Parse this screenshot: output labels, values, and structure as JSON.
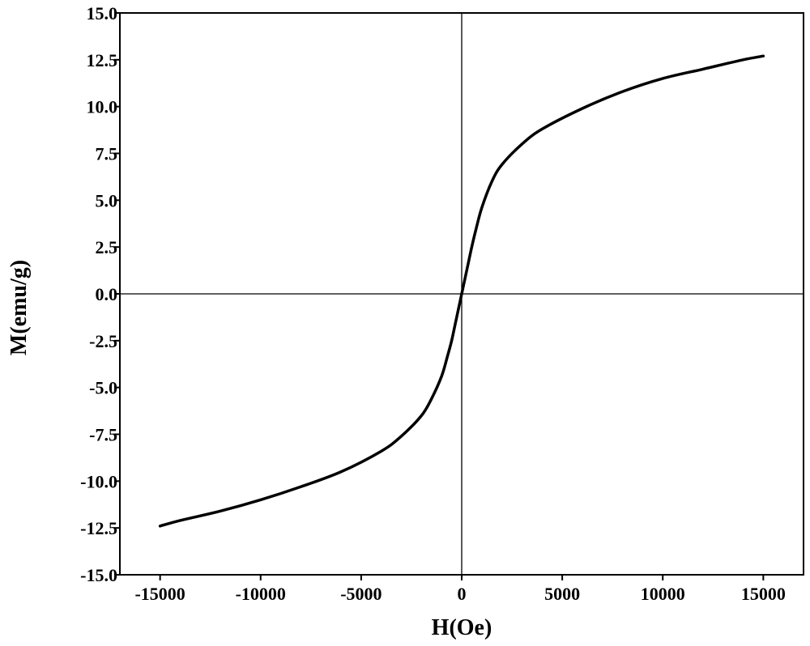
{
  "chart_data": {
    "type": "line",
    "title": "",
    "xlabel": "H(Oe)",
    "ylabel": "M(emu/g)",
    "xlim": [
      -17000,
      17000
    ],
    "ylim": [
      -15.0,
      15.0
    ],
    "xticks": [
      -15000,
      -10000,
      -5000,
      0,
      5000,
      10000,
      15000
    ],
    "xtick_labels": [
      "-15000",
      "-10000",
      "-5000",
      "0",
      "5000",
      "10000",
      "15000"
    ],
    "yticks": [
      15.0,
      12.5,
      10.0,
      7.5,
      5.0,
      2.5,
      0.0,
      -2.5,
      -5.0,
      -7.5,
      -10.0,
      -12.5,
      -15.0
    ],
    "ytick_labels": [
      "15.0",
      "12.5",
      "10.0",
      "7.5",
      "5.0",
      "2.5",
      "0.0",
      "-2.5",
      "-5.0",
      "-7.5",
      "-10.0",
      "-12.5",
      "-15.0"
    ],
    "grid": false,
    "zero_lines": true,
    "line_color": "#000000",
    "series": [
      {
        "x": [
          -15000,
          -14000,
          -12000,
          -10000,
          -8000,
          -6000,
          -4000,
          -3000,
          -2000,
          -1500,
          -1000,
          -700,
          -500,
          -300,
          -200,
          -100,
          0,
          100,
          200,
          300,
          500,
          700,
          1000,
          1500,
          2000,
          3000,
          4000,
          6000,
          8000,
          10000,
          12000,
          14000,
          15000
        ],
        "y": [
          -12.4,
          -12.1,
          -11.6,
          -11.0,
          -10.3,
          -9.5,
          -8.4,
          -7.6,
          -6.5,
          -5.6,
          -4.4,
          -3.3,
          -2.5,
          -1.5,
          -1.0,
          -0.5,
          0.0,
          0.5,
          1.0,
          1.5,
          2.5,
          3.4,
          4.6,
          6.0,
          6.9,
          8.0,
          8.8,
          9.9,
          10.8,
          11.5,
          12.0,
          12.5,
          12.7
        ]
      }
    ]
  }
}
